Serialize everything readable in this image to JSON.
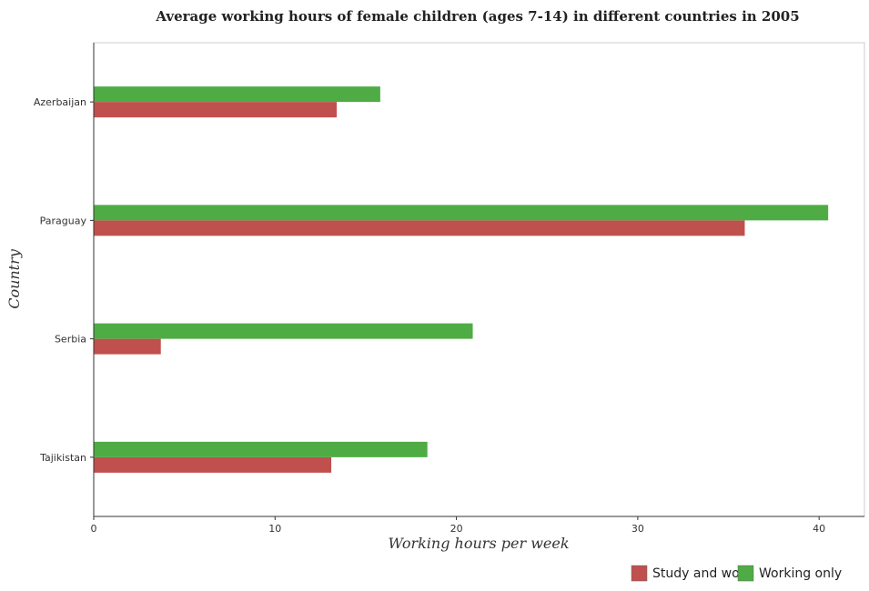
{
  "chart_data": {
    "type": "bar",
    "orientation": "horizontal",
    "title": "Average working hours of female children (ages 7-14) in different countries in 2005",
    "xlabel": "Working hours per week",
    "ylabel": "Country",
    "categories": [
      "Azerbaijan",
      "Paraguay",
      "Serbia",
      "Tajikistan"
    ],
    "series": [
      {
        "name": "Study and work",
        "color": "#c0504d",
        "values": [
          13.4,
          35.9,
          3.7,
          13.1
        ]
      },
      {
        "name": "Working only",
        "color": "#4fac45",
        "values": [
          15.8,
          40.5,
          20.9,
          18.4
        ]
      }
    ],
    "xlim": [
      0,
      42.5
    ],
    "xticks": [
      0,
      10,
      20,
      30,
      40
    ],
    "xtick_labels": [
      "0",
      "10",
      "20",
      "30",
      "40"
    ],
    "grid": false,
    "legend_position": "bottom-right"
  }
}
